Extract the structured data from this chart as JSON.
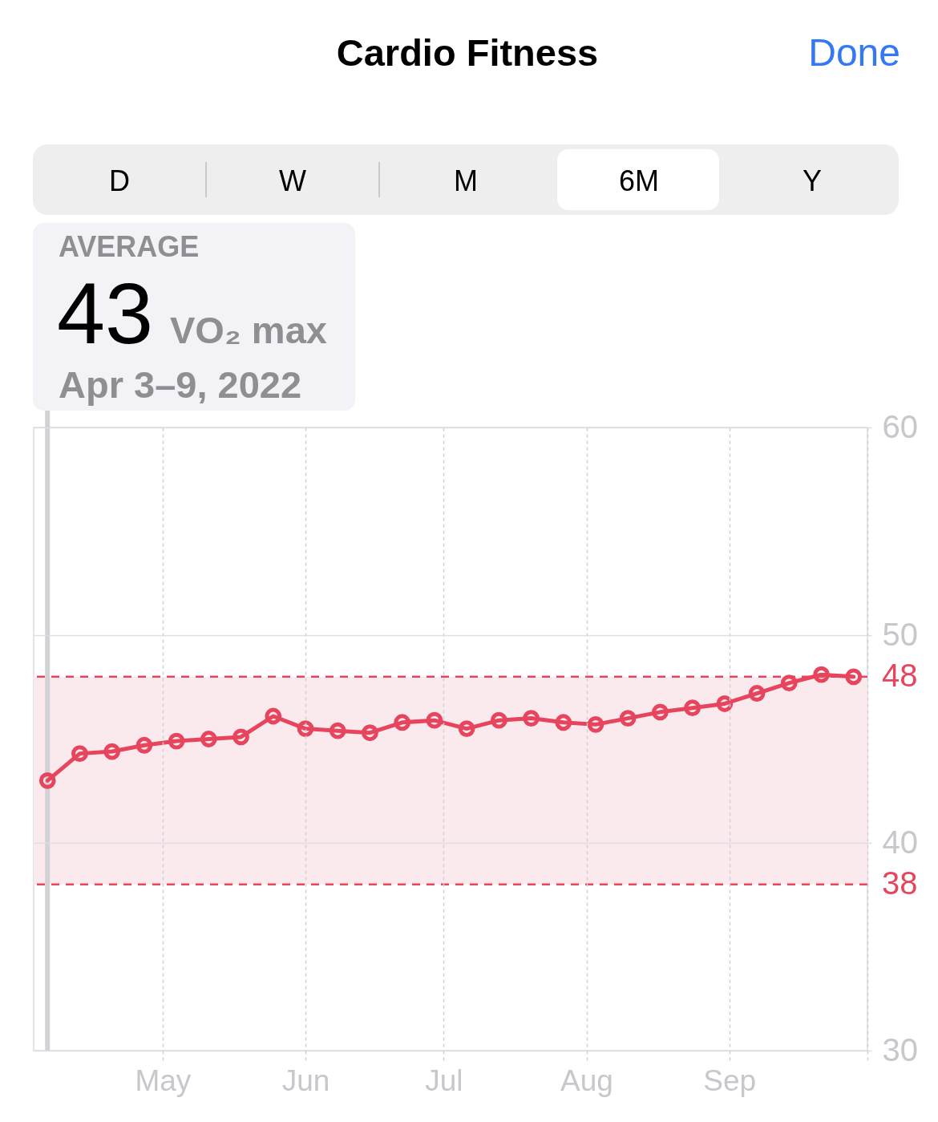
{
  "chart_data": {
    "type": "line",
    "title": "Cardio Fitness",
    "annotations": [
      "Done",
      "D",
      "W",
      "M",
      "6M",
      "Y",
      "AVERAGE",
      "43",
      "VO₂ max",
      "Apr 3–9, 2022"
    ],
    "x": [
      "2022-04-06",
      "2022-04-13",
      "2022-04-20",
      "2022-04-27",
      "2022-05-04",
      "2022-05-11",
      "2022-05-18",
      "2022-05-25",
      "2022-06-01",
      "2022-06-08",
      "2022-06-15",
      "2022-06-22",
      "2022-06-29",
      "2022-07-06",
      "2022-07-13",
      "2022-07-20",
      "2022-07-27",
      "2022-08-03",
      "2022-08-10",
      "2022-08-17",
      "2022-08-24",
      "2022-08-31",
      "2022-09-07",
      "2022-09-14",
      "2022-09-21",
      "2022-09-28"
    ],
    "series": [
      {
        "color": "#e6455d",
        "values": [
          43.0,
          44.3,
          44.4,
          44.7,
          44.9,
          45.0,
          45.1,
          46.1,
          45.5,
          45.4,
          45.3,
          45.8,
          45.9,
          45.5,
          45.9,
          46.0,
          45.8,
          45.7,
          46.0,
          46.3,
          46.5,
          46.7,
          47.2,
          47.7,
          48.1,
          48.0
        ]
      }
    ],
    "xlim": [
      "2022-04-03",
      "2022-10-01"
    ],
    "xticks": [
      {
        "value": "2022-05-01",
        "label": "May"
      },
      {
        "value": "2022-06-01",
        "label": "Jun"
      },
      {
        "value": "2022-07-01",
        "label": "Jul"
      },
      {
        "value": "2022-08-01",
        "label": "Aug"
      },
      {
        "value": "2022-09-01",
        "label": "Sep"
      },
      {
        "value": "2022-10-01",
        "label": null
      }
    ],
    "ylim": [
      30,
      60
    ],
    "yticks": [
      30,
      40,
      50,
      60
    ],
    "bands": [
      {
        "axis": "y",
        "from": 38,
        "to": 48,
        "color": "#fbeaed"
      }
    ],
    "ref_lines": [
      {
        "axis": "y",
        "value": 48,
        "label": "48",
        "color": "#e6455d",
        "line_style": "dashed"
      },
      {
        "axis": "y",
        "value": 38,
        "label": "38",
        "color": "#e6455d",
        "line_style": "dashed"
      },
      {
        "axis": "x",
        "value": "2022-04-06",
        "color": "#d1d1d6"
      }
    ],
    "grid": true,
    "marker": "circle",
    "line_style": "solid"
  }
}
